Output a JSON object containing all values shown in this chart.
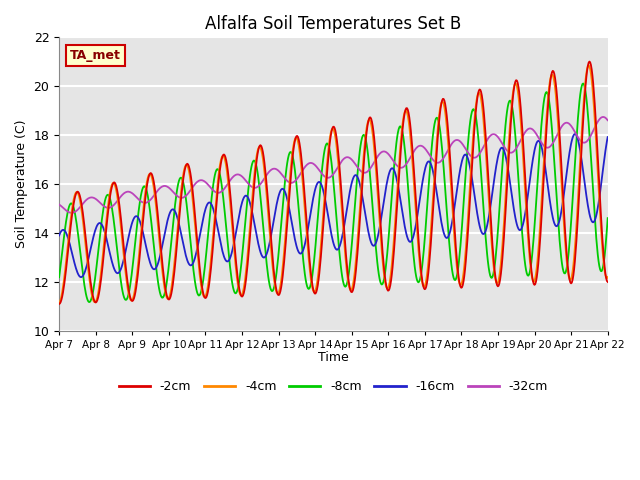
{
  "title": "Alfalfa Soil Temperatures Set B",
  "xlabel": "Time",
  "ylabel": "Soil Temperature (C)",
  "ylim": [
    10,
    22
  ],
  "background_color": "#e8e8e8",
  "plot_bg_color": "#e5e5e5",
  "grid_color": "#ffffff",
  "colors": {
    "-2cm": "#dd0000",
    "-4cm": "#ff8800",
    "-8cm": "#00cc00",
    "-16cm": "#2222cc",
    "-32cm": "#bb44bb"
  },
  "xtick_labels": [
    "Apr 7",
    "Apr 8",
    "Apr 9",
    "Apr 10",
    "Apr 11",
    "Apr 12",
    "Apr 13",
    "Apr 14",
    "Apr 15",
    "Apr 16",
    "Apr 17",
    "Apr 18",
    "Apr 19",
    "Apr 20",
    "Apr 21",
    "Apr 22"
  ],
  "annotation_text": "TA_met",
  "annotation_bg": "#ffffcc",
  "annotation_border": "#cc0000"
}
